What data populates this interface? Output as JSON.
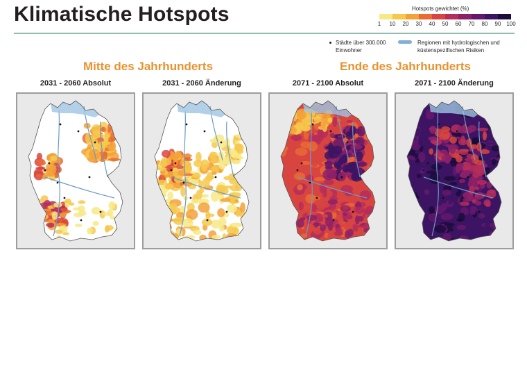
{
  "header": {
    "title": "Klimatische Hotspots"
  },
  "scale": {
    "title": "Hotspots gewichtet (%)",
    "ticks": [
      "1",
      "10",
      "20",
      "30",
      "40",
      "50",
      "60",
      "70",
      "80",
      "90",
      "100"
    ],
    "colors": [
      "#f7e987",
      "#f6c94d",
      "#f3a13a",
      "#ea6b33",
      "#d84540",
      "#b62d5a",
      "#8d2168",
      "#65176c",
      "#3c1463",
      "#1b0c3c"
    ]
  },
  "legend": {
    "cities": "Städte über 300.000 Einwohner",
    "regions": "Regionen mit hydrologischen und küstenspezifischen Risiken",
    "region_color": "#7fb0d6"
  },
  "eras": {
    "mid": "Mitte des Jahrhunderts",
    "end": "Ende des Jahrhunderts"
  },
  "panels": [
    {
      "label": "2031 - 2060 Absolut",
      "period": "2031-2060",
      "measure": "Absolut"
    },
    {
      "label": "2031 - 2060 Änderung",
      "period": "2031-2060",
      "measure": "Änderung"
    },
    {
      "label": "2071 - 2100 Absolut",
      "period": "2071-2100",
      "measure": "Absolut"
    },
    {
      "label": "2071 - 2100 Änderung",
      "period": "2071-2100",
      "measure": "Änderung"
    }
  ]
}
